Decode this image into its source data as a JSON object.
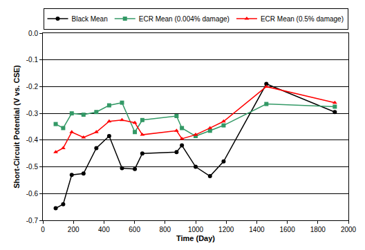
{
  "chart_data": {
    "type": "line",
    "x_label": "Time (Day)",
    "y_label": "Short-Circuit Potential (V vs. CSE)",
    "x": [
      84,
      133,
      189,
      266,
      350,
      434,
      518,
      602,
      651,
      875,
      910,
      1000,
      1094,
      1183,
      1463,
      1911
    ],
    "series": [
      {
        "name": "Black Mean",
        "color": "#000000",
        "marker": "circle",
        "values": [
          -0.655,
          -0.64,
          -0.53,
          -0.525,
          -0.43,
          -0.385,
          -0.505,
          -0.508,
          -0.45,
          -0.445,
          -0.42,
          -0.5,
          -0.535,
          -0.48,
          -0.19,
          -0.295
        ]
      },
      {
        "name": "ECR Mean (0.004% damage)",
        "color": "#339966",
        "marker": "square",
        "values": [
          -0.34,
          -0.355,
          -0.3,
          -0.305,
          -0.295,
          -0.27,
          -0.26,
          -0.37,
          -0.325,
          -0.31,
          -0.355,
          -0.385,
          -0.365,
          -0.345,
          -0.265,
          -0.275
        ]
      },
      {
        "name": "ECR Mean (0.5% damage)",
        "color": "#ff0000",
        "marker": "triangle-up",
        "values": [
          -0.445,
          -0.43,
          -0.37,
          -0.39,
          -0.37,
          -0.33,
          -0.325,
          -0.335,
          -0.38,
          -0.365,
          -0.395,
          -0.38,
          -0.355,
          -0.33,
          -0.2,
          -0.26
        ]
      }
    ],
    "xlim": [
      0,
      2000
    ],
    "xticks": [
      0,
      200,
      400,
      600,
      800,
      1000,
      1200,
      1400,
      1600,
      1800,
      2000
    ],
    "ylim": [
      -0.7,
      0
    ],
    "yticks": [
      -0.7,
      -0.6,
      -0.5,
      -0.4,
      -0.3,
      -0.2,
      -0.1,
      {
        "value": 0,
        "label": "0.0"
      }
    ],
    "grid": true,
    "legend": "top"
  }
}
